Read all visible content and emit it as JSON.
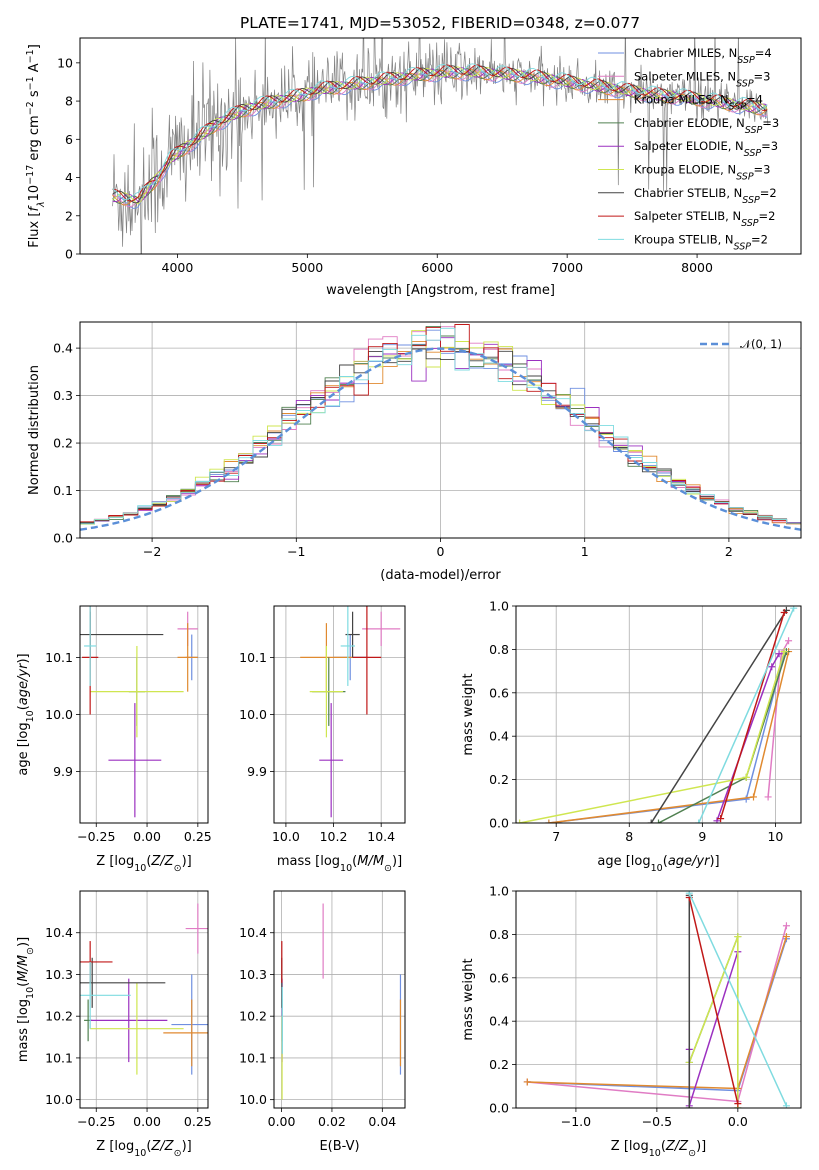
{
  "title": "PLATE=1741, MJD=53052, FIBERID=0348, z=0.077",
  "colors": {
    "Chabrier MILES": "#6f8fe0",
    "Salpeter MILES": "#e07cc4",
    "Kroupa MILES": "#e08a30",
    "Chabrier ELODIE": "#508050",
    "Salpeter ELODIE": "#9b30c0",
    "Kroupa ELODIE": "#cfe650",
    "Chabrier STELIB": "#444444",
    "Salpeter STELIB": "#c01818",
    "Kroupa STELIB": "#7fdbe0",
    "gauss": "#5b8fd8",
    "spectrum": "#808080"
  },
  "chart_data": [
    {
      "type": "line",
      "xlabel": "wavelength [Angstrom, rest frame]",
      "ylabel": "Flux [f_λ 10^-17 erg cm^-2 s^-1 A^-1]",
      "xlim": [
        3250,
        8800
      ],
      "ylim": [
        0,
        11.3
      ],
      "xticks": [
        4000,
        5000,
        6000,
        7000,
        8000
      ],
      "yticks": [
        0,
        2,
        4,
        6,
        8,
        10
      ],
      "legend_position": "upper-right",
      "legend": [
        {
          "sub": "Chabrier MILES",
          "n": "4"
        },
        {
          "sub": "Salpeter MILES",
          "n": "3"
        },
        {
          "sub": "Kroupa MILES",
          "n": "4"
        },
        {
          "sub": "Chabrier ELODIE",
          "n": "3"
        },
        {
          "sub": "Salpeter ELODIE",
          "n": "3"
        },
        {
          "sub": "Kroupa ELODIE",
          "n": "3"
        },
        {
          "sub": "Chabrier STELIB",
          "n": "2"
        },
        {
          "sub": "Salpeter STELIB",
          "n": "2"
        },
        {
          "sub": "Kroupa STELIB",
          "n": "2"
        }
      ],
      "continuum": {
        "x": [
          3500,
          3700,
          3850,
          3950,
          4050,
          4150,
          4300,
          4500,
          4700,
          4900,
          5100,
          5300,
          5500,
          5700,
          5900,
          6100,
          6300,
          6500,
          6700,
          6900,
          7100,
          7300,
          7500,
          7700,
          7900,
          8100,
          8300,
          8500
        ],
        "y": [
          3.0,
          2.8,
          4.0,
          5.0,
          5.5,
          6.0,
          6.8,
          7.5,
          7.9,
          8.2,
          8.6,
          8.8,
          9.0,
          9.2,
          9.4,
          9.5,
          9.5,
          9.4,
          9.3,
          9.1,
          8.9,
          8.7,
          8.5,
          8.3,
          8.2,
          8.0,
          7.8,
          7.6
        ]
      },
      "grid": false
    },
    {
      "type": "bar",
      "xlabel": "(data-model)/error",
      "ylabel": "Normed distribution",
      "xlim": [
        -2.5,
        2.5
      ],
      "ylim": [
        0,
        0.455
      ],
      "xticks": [
        -2,
        -1,
        0,
        1,
        2
      ],
      "xticklabels": [
        "−2",
        "−1",
        "0",
        "1",
        "2"
      ],
      "yticks": [
        0,
        0.1,
        0.2,
        0.3,
        0.4
      ],
      "yticklabels": [
        "0.0",
        "0.1",
        "0.2",
        "0.3",
        "0.4"
      ],
      "bins": {
        "start": -2.5,
        "width": 0.1,
        "count": 50
      },
      "reference_curve": {
        "name": "N(0,1)",
        "sigma": 1.0
      },
      "legend_position": "upper-right",
      "grid": true
    },
    {
      "type": "scatter",
      "xlabel": "Z [log10(Z/Z_sun)]",
      "ylabel": "age [log10(age/yr)]",
      "xlim": [
        -0.33,
        0.3
      ],
      "ylim": [
        9.81,
        10.19
      ],
      "xticks": [
        -0.25,
        0.0,
        0.25
      ],
      "xticklabels": [
        "−0.25",
        "0.00",
        "0.25"
      ],
      "yticks": [
        9.9,
        10.0,
        10.1
      ],
      "yticklabels": [
        "9.9",
        "10.0",
        "10.1"
      ],
      "points": [
        {
          "sub": "Chabrier MILES",
          "x": 0.22,
          "y": 10.1,
          "xerr": 0.03,
          "yerr": 0.04
        },
        {
          "sub": "Salpeter MILES",
          "x": 0.2,
          "y": 10.15,
          "xerr": 0.05,
          "yerr": 0.03
        },
        {
          "sub": "Kroupa MILES",
          "x": 0.2,
          "y": 10.1,
          "xerr": 0.05,
          "yerr": 0.06
        },
        {
          "sub": "Chabrier ELODIE",
          "x": -0.05,
          "y": 10.04,
          "xerr": 0.04,
          "yerr": 0.06
        },
        {
          "sub": "Salpeter ELODIE",
          "x": -0.06,
          "y": 9.92,
          "xerr": 0.13,
          "yerr": 0.1
        },
        {
          "sub": "Kroupa ELODIE",
          "x": -0.05,
          "y": 10.04,
          "xerr": 0.23,
          "yerr": 0.08
        },
        {
          "sub": "Chabrier STELIB",
          "x": -0.28,
          "y": 10.14,
          "xerr": 0.36,
          "yerr": 0.04
        },
        {
          "sub": "Salpeter STELIB",
          "x": -0.28,
          "y": 10.1,
          "xerr": 0.04,
          "yerr": 0.1
        },
        {
          "sub": "Kroupa STELIB",
          "x": -0.28,
          "y": 10.12,
          "xerr": 0.03,
          "yerr": 0.07
        }
      ],
      "grid": true
    },
    {
      "type": "scatter",
      "xlabel": "mass [log10(M/M_sun)]",
      "ylabel": "",
      "xlim": [
        9.95,
        10.5
      ],
      "ylim": [
        9.81,
        10.19
      ],
      "xticks": [
        10.0,
        10.2,
        10.4
      ],
      "xticklabels": [
        "10.0",
        "10.2",
        "10.4"
      ],
      "yticks": [
        9.9,
        10.0,
        10.1
      ],
      "yticklabels": [
        "9.9",
        "10.0",
        "10.1"
      ],
      "points": [
        {
          "sub": "Chabrier MILES",
          "x": 10.27,
          "y": 10.1,
          "xerr": 0.07,
          "yerr": 0.04
        },
        {
          "sub": "Salpeter MILES",
          "x": 10.4,
          "y": 10.15,
          "xerr": 0.08,
          "yerr": 0.03
        },
        {
          "sub": "Kroupa MILES",
          "x": 10.17,
          "y": 10.1,
          "xerr": 0.11,
          "yerr": 0.06
        },
        {
          "sub": "Chabrier ELODIE",
          "x": 10.18,
          "y": 10.04,
          "xerr": 0.07,
          "yerr": 0.06
        },
        {
          "sub": "Salpeter ELODIE",
          "x": 10.19,
          "y": 9.92,
          "xerr": 0.05,
          "yerr": 0.1
        },
        {
          "sub": "Kroupa ELODIE",
          "x": 10.17,
          "y": 10.04,
          "xerr": 0.07,
          "yerr": 0.08
        },
        {
          "sub": "Chabrier STELIB",
          "x": 10.28,
          "y": 10.14,
          "xerr": 0.03,
          "yerr": 0.04
        },
        {
          "sub": "Salpeter STELIB",
          "x": 10.34,
          "y": 10.1,
          "xerr": 0.06,
          "yerr": 0.1
        },
        {
          "sub": "Kroupa STELIB",
          "x": 10.26,
          "y": 10.12,
          "xerr": 0.03,
          "yerr": 0.07
        }
      ],
      "grid": true
    },
    {
      "type": "line",
      "xlabel": "age [log10(age/yr)]",
      "ylabel": "mass weight",
      "xlim": [
        6.45,
        10.35
      ],
      "ylim": [
        0,
        1.0
      ],
      "xticks": [
        7,
        8,
        9,
        10
      ],
      "yticks": [
        0,
        0.2,
        0.4,
        0.6,
        0.8,
        1.0
      ],
      "yticklabels": [
        "0.0",
        "0.2",
        "0.4",
        "0.6",
        "0.8",
        "1.0"
      ],
      "series": [
        {
          "sub": "Chabrier MILES",
          "x": [
            6.9,
            9.6,
            10.12
          ],
          "y": [
            0.0,
            0.11,
            0.78
          ]
        },
        {
          "sub": "Salpeter MILES",
          "x": [
            9.9,
            10.08,
            10.18
          ],
          "y": [
            0.12,
            0.78,
            0.84
          ]
        },
        {
          "sub": "Kroupa MILES",
          "x": [
            6.9,
            9.7,
            10.18
          ],
          "y": [
            0.0,
            0.12,
            0.79
          ]
        },
        {
          "sub": "Chabrier ELODIE",
          "x": [
            8.4,
            9.6,
            10.15
          ],
          "y": [
            0.0,
            0.21,
            0.79
          ]
        },
        {
          "sub": "Salpeter ELODIE",
          "x": [
            9.2,
            9.95,
            10.05
          ],
          "y": [
            0.01,
            0.72,
            0.78
          ]
        },
        {
          "sub": "Kroupa ELODIE",
          "x": [
            6.5,
            9.6,
            10.12
          ],
          "y": [
            0.0,
            0.21,
            0.79
          ]
        },
        {
          "sub": "Chabrier STELIB",
          "x": [
            8.3,
            10.15
          ],
          "y": [
            0.0,
            0.98
          ]
        },
        {
          "sub": "Salpeter STELIB",
          "x": [
            9.25,
            10.12
          ],
          "y": [
            0.02,
            0.97
          ]
        },
        {
          "sub": "Kroupa STELIB",
          "x": [
            8.95,
            10.25
          ],
          "y": [
            0.0,
            0.99
          ]
        }
      ],
      "grid": true
    },
    {
      "type": "scatter",
      "xlabel": "Z [log10(Z/Z_sun)]",
      "ylabel": "mass [log10(M/M_sun)]",
      "xlim": [
        -0.33,
        0.3
      ],
      "ylim": [
        9.98,
        10.5
      ],
      "xticks": [
        -0.25,
        0.0,
        0.25
      ],
      "xticklabels": [
        "−0.25",
        "0.00",
        "0.25"
      ],
      "yticks": [
        10.0,
        10.1,
        10.2,
        10.3,
        10.4
      ],
      "yticklabels": [
        "10.0",
        "10.1",
        "10.2",
        "10.3",
        "10.4"
      ],
      "points": [
        {
          "sub": "Chabrier MILES",
          "x": 0.22,
          "y": 10.18,
          "xerr": 0.1,
          "yerr": 0.12
        },
        {
          "sub": "Salpeter MILES",
          "x": 0.25,
          "y": 10.41,
          "xerr": 0.06,
          "yerr": 0.06
        },
        {
          "sub": "Kroupa MILES",
          "x": 0.22,
          "y": 10.16,
          "xerr": 0.14,
          "yerr": 0.08
        },
        {
          "sub": "Chabrier ELODIE",
          "x": -0.29,
          "y": 10.19,
          "xerr": 0.02,
          "yerr": 0.05
        },
        {
          "sub": "Salpeter ELODIE",
          "x": -0.09,
          "y": 10.19,
          "xerr": 0.19,
          "yerr": 0.1
        },
        {
          "sub": "Kroupa ELODIE",
          "x": -0.05,
          "y": 10.17,
          "xerr": 0.23,
          "yerr": 0.11
        },
        {
          "sub": "Chabrier STELIB",
          "x": -0.27,
          "y": 10.28,
          "xerr": 0.36,
          "yerr": 0.06
        },
        {
          "sub": "Salpeter STELIB",
          "x": -0.28,
          "y": 10.33,
          "xerr": 0.11,
          "yerr": 0.05
        },
        {
          "sub": "Kroupa STELIB",
          "x": -0.28,
          "y": 10.25,
          "xerr": 0.2,
          "yerr": 0.08
        }
      ],
      "grid": true
    },
    {
      "type": "scatter",
      "xlabel": "E(B-V)",
      "ylabel": "",
      "xlim": [
        -0.003,
        0.049
      ],
      "ylim": [
        9.98,
        10.5
      ],
      "xticks": [
        0.0,
        0.02,
        0.04
      ],
      "xticklabels": [
        "0.00",
        "0.02",
        "0.04"
      ],
      "yticks": [
        10.0,
        10.1,
        10.2,
        10.3,
        10.4
      ],
      "yticklabels": [
        "10.0",
        "10.1",
        "10.2",
        "10.3",
        "10.4"
      ],
      "points": [
        {
          "sub": "Chabrier MILES",
          "x": 0.0472,
          "y": 10.18,
          "xerr": 0.0,
          "yerr": 0.12
        },
        {
          "sub": "Salpeter MILES",
          "x": 0.0165,
          "y": 10.38,
          "xerr": 0.0,
          "yerr": 0.09
        },
        {
          "sub": "Kroupa MILES",
          "x": 0.0472,
          "y": 10.16,
          "xerr": 0.0,
          "yerr": 0.08
        },
        {
          "sub": "Chabrier ELODIE",
          "x": 0.0002,
          "y": 10.19,
          "xerr": 0.0,
          "yerr": 0.05
        },
        {
          "sub": "Salpeter ELODIE",
          "x": 0.0002,
          "y": 10.19,
          "xerr": 0.0,
          "yerr": 0.1
        },
        {
          "sub": "Kroupa ELODIE",
          "x": 0.0002,
          "y": 10.1,
          "xerr": 0.0,
          "yerr": 0.1
        },
        {
          "sub": "Chabrier STELIB",
          "x": 0.0001,
          "y": 10.28,
          "xerr": 0.0,
          "yerr": 0.06
        },
        {
          "sub": "Salpeter STELIB",
          "x": 0.0001,
          "y": 10.33,
          "xerr": 0.0,
          "yerr": 0.05
        },
        {
          "sub": "Kroupa STELIB",
          "x": 0.0003,
          "y": 10.19,
          "xerr": 0.0,
          "yerr": 0.08
        }
      ],
      "grid": true
    },
    {
      "type": "line",
      "xlabel": "Z [log10(Z/Z_sun)]",
      "ylabel": "mass weight",
      "xlim": [
        -1.37,
        0.39
      ],
      "ylim": [
        0,
        1.0
      ],
      "xticks": [
        -1.0,
        -0.5,
        0.0
      ],
      "xticklabels": [
        "−1.0",
        "−0.5",
        "0.0"
      ],
      "yticks": [
        0,
        0.2,
        0.4,
        0.6,
        0.8,
        1.0
      ],
      "yticklabels": [
        "0.0",
        "0.2",
        "0.4",
        "0.6",
        "0.8",
        "1.0"
      ],
      "series": [
        {
          "sub": "Chabrier MILES",
          "x": [
            -1.3,
            0.0,
            0.3
          ],
          "y": [
            0.12,
            0.08,
            0.78
          ]
        },
        {
          "sub": "Salpeter MILES",
          "x": [
            -1.3,
            0.0,
            0.3
          ],
          "y": [
            0.12,
            0.03,
            0.84
          ]
        },
        {
          "sub": "Kroupa MILES",
          "x": [
            -1.3,
            0.0,
            0.3
          ],
          "y": [
            0.12,
            0.09,
            0.79
          ]
        },
        {
          "sub": "Chabrier ELODIE",
          "x": [
            -0.3,
            0.0,
            0.0
          ],
          "y": [
            0.21,
            0.79,
            0.0
          ]
        },
        {
          "sub": "Salpeter ELODIE",
          "x": [
            -0.3,
            -0.3,
            0.0
          ],
          "y": [
            0.27,
            0.01,
            0.72
          ]
        },
        {
          "sub": "Kroupa ELODIE",
          "x": [
            -0.3,
            0.0,
            0.0
          ],
          "y": [
            0.21,
            0.79,
            0.0
          ]
        },
        {
          "sub": "Chabrier STELIB",
          "x": [
            -0.3,
            -0.3
          ],
          "y": [
            0.0,
            0.98
          ]
        },
        {
          "sub": "Salpeter STELIB",
          "x": [
            -0.3,
            0.0
          ],
          "y": [
            0.97,
            0.02
          ]
        },
        {
          "sub": "Kroupa STELIB",
          "x": [
            -0.3,
            0.3
          ],
          "y": [
            0.99,
            0.01
          ]
        }
      ],
      "grid": true
    }
  ]
}
